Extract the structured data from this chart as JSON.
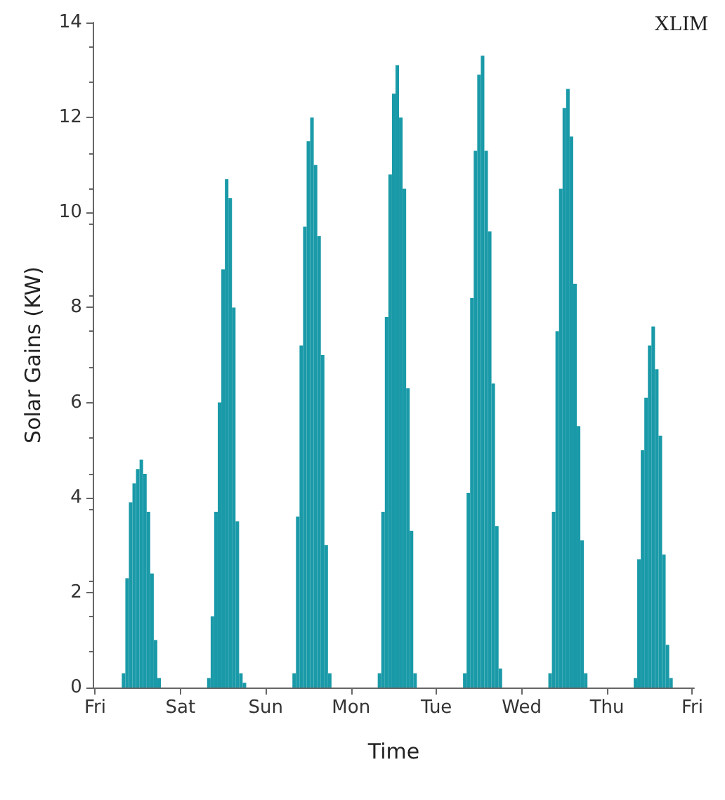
{
  "chart_data": {
    "type": "bar",
    "xlabel": "Time",
    "ylabel": "Solar Gains (KW)",
    "annotations": [
      "XLIM"
    ],
    "color": "#1a9aa8",
    "grid": false,
    "categories": [
      "Fri",
      null,
      null,
      null,
      null,
      null,
      null,
      null,
      null,
      null,
      null,
      null,
      null,
      null,
      null,
      null,
      null,
      null,
      null,
      null,
      null,
      null,
      null,
      null,
      "Sat",
      null,
      null,
      null,
      null,
      null,
      null,
      null,
      null,
      null,
      null,
      null,
      null,
      null,
      null,
      null,
      null,
      null,
      null,
      null,
      null,
      null,
      null,
      null,
      "Sun",
      null,
      null,
      null,
      null,
      null,
      null,
      null,
      null,
      null,
      null,
      null,
      null,
      null,
      null,
      null,
      null,
      null,
      null,
      null,
      null,
      null,
      null,
      null,
      "Mon",
      null,
      null,
      null,
      null,
      null,
      null,
      null,
      null,
      null,
      null,
      null,
      null,
      null,
      null,
      null,
      null,
      null,
      null,
      null,
      null,
      null,
      null,
      null,
      "Tue",
      null,
      null,
      null,
      null,
      null,
      null,
      null,
      null,
      null,
      null,
      null,
      null,
      null,
      null,
      null,
      null,
      null,
      null,
      null,
      null,
      null,
      null,
      null,
      "Wed",
      null,
      null,
      null,
      null,
      null,
      null,
      null,
      null,
      null,
      null,
      null,
      null,
      null,
      null,
      null,
      null,
      null,
      null,
      null,
      null,
      null,
      null,
      null,
      "Thu",
      null,
      null,
      null,
      null,
      null,
      null,
      null,
      null,
      null,
      null,
      null,
      null,
      null,
      null,
      null,
      null,
      null,
      null,
      null,
      null,
      null,
      null,
      null,
      "Fri"
    ],
    "values": [
      null,
      null,
      null,
      null,
      null,
      null,
      null,
      null,
      0.3,
      2.3,
      3.9,
      4.3,
      4.6,
      4.8,
      4.5,
      3.7,
      2.4,
      1.0,
      0.2,
      null,
      null,
      null,
      null,
      null,
      null,
      null,
      null,
      null,
      null,
      null,
      null,
      null,
      0.2,
      1.5,
      3.7,
      6.0,
      8.8,
      10.7,
      10.3,
      8.0,
      3.5,
      0.3,
      0.1,
      null,
      null,
      null,
      null,
      null,
      null,
      null,
      null,
      null,
      null,
      null,
      null,
      null,
      0.3,
      3.6,
      7.2,
      9.7,
      11.5,
      12.0,
      11.0,
      9.5,
      7.0,
      3.0,
      0.3,
      null,
      null,
      null,
      null,
      null,
      null,
      null,
      null,
      null,
      null,
      null,
      null,
      null,
      0.3,
      3.7,
      7.8,
      10.8,
      12.5,
      13.1,
      12.0,
      10.5,
      6.3,
      3.3,
      0.3,
      null,
      null,
      null,
      null,
      null,
      null,
      null,
      null,
      null,
      null,
      null,
      null,
      null,
      0.3,
      4.1,
      8.2,
      11.3,
      12.9,
      13.3,
      11.3,
      9.6,
      6.4,
      3.4,
      0.4,
      null,
      null,
      null,
      null,
      null,
      null,
      null,
      null,
      null,
      null,
      null,
      null,
      null,
      0.3,
      3.7,
      7.5,
      10.5,
      12.2,
      12.6,
      11.6,
      8.5,
      5.5,
      3.1,
      0.3,
      null,
      null,
      null,
      null,
      null,
      null,
      null,
      null,
      null,
      null,
      null,
      null,
      null,
      0.2,
      2.7,
      5.0,
      6.1,
      7.2,
      7.6,
      6.7,
      5.3,
      2.8,
      0.9,
      0.2,
      null,
      null,
      null,
      null,
      null,
      null
    ],
    "ylim": [
      0,
      14
    ],
    "yticks": [
      0,
      2,
      4,
      6,
      8,
      10,
      12,
      14
    ]
  }
}
